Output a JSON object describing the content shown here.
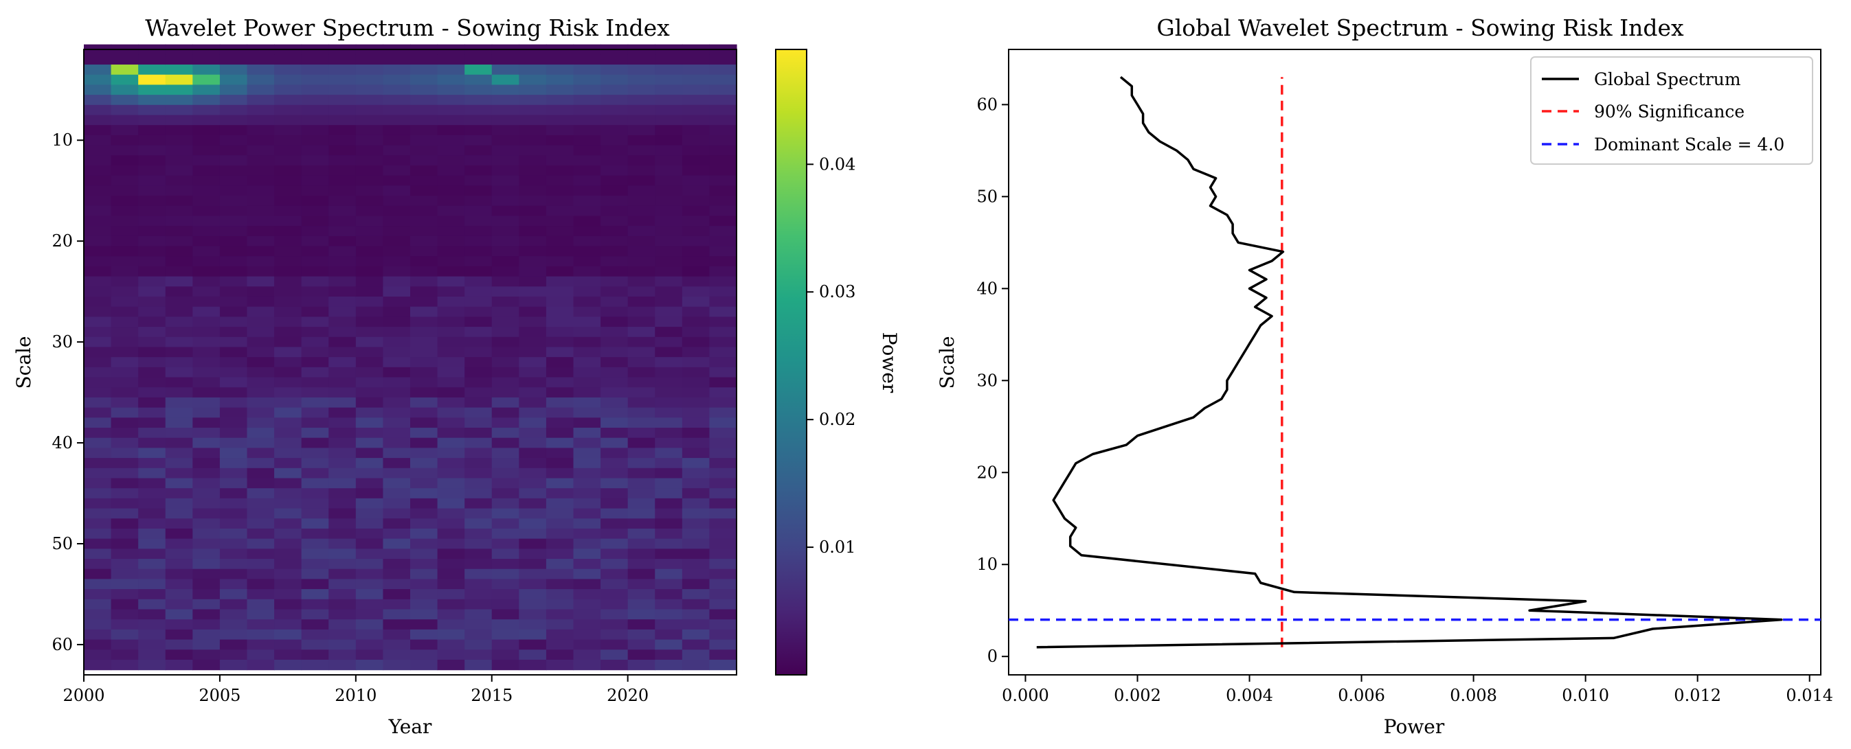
{
  "chart_data": [
    {
      "type": "heatmap",
      "title": "Wavelet Power Spectrum - Sowing Risk Index",
      "xlabel": "Year",
      "ylabel": "Scale",
      "xlim": [
        2000,
        2024
      ],
      "ylim": [
        63,
        1
      ],
      "x_ticks": [
        "2000",
        "2005",
        "2010",
        "2015",
        "2020"
      ],
      "y_ticks": [
        "10",
        "20",
        "30",
        "40",
        "50",
        "60"
      ],
      "years_start": 2000,
      "years_count": 24,
      "scales_count": 62,
      "colorbar": {
        "label": "Power",
        "colormap": "viridis",
        "min": 0.0,
        "max": 0.049,
        "ticks": [
          "0.01",
          "0.02",
          "0.03",
          "0.04"
        ]
      },
      "hotspots": [
        {
          "year": 2001,
          "scale": 3,
          "power": 0.042
        },
        {
          "year": 2002,
          "scale": 4,
          "power": 0.049
        },
        {
          "year": 2003,
          "scale": 4,
          "power": 0.047
        },
        {
          "year": 2004,
          "scale": 4,
          "power": 0.034
        },
        {
          "year": 2014,
          "scale": 3,
          "power": 0.028
        },
        {
          "year": 2015,
          "scale": 4,
          "power": 0.024
        }
      ]
    },
    {
      "type": "line",
      "title": "Global Wavelet Spectrum - Sowing Risk Index",
      "xlabel": "Power",
      "ylabel": "Scale",
      "xlim": [
        -0.0003,
        0.0142
      ],
      "ylim": [
        -2,
        66
      ],
      "x_ticks": [
        "0.000",
        "0.002",
        "0.004",
        "0.006",
        "0.008",
        "0.010",
        "0.012",
        "0.014"
      ],
      "y_ticks": [
        "0",
        "10",
        "20",
        "30",
        "40",
        "50",
        "60"
      ],
      "legend_position": "top-right",
      "legend": [
        "Global Spectrum",
        "90% Significance",
        "Dominant Scale = 4.0"
      ],
      "colors": {
        "spectrum": "#000000",
        "significance": "#ff1a1a",
        "dominant": "#1a1aff"
      },
      "series": [
        {
          "name": "Global Spectrum",
          "points": [
            [
              0.0002,
              1
            ],
            [
              0.0105,
              2
            ],
            [
              0.0112,
              3
            ],
            [
              0.0135,
              4
            ],
            [
              0.009,
              5
            ],
            [
              0.01,
              6
            ],
            [
              0.0048,
              7
            ],
            [
              0.0042,
              8
            ],
            [
              0.0041,
              9
            ],
            [
              0.001,
              11
            ],
            [
              0.0008,
              12
            ],
            [
              0.0008,
              13
            ],
            [
              0.0009,
              14
            ],
            [
              0.0007,
              15
            ],
            [
              0.0006,
              16
            ],
            [
              0.0005,
              17
            ],
            [
              0.0006,
              18
            ],
            [
              0.0007,
              19
            ],
            [
              0.0008,
              20
            ],
            [
              0.0009,
              21
            ],
            [
              0.0012,
              22
            ],
            [
              0.0018,
              23
            ],
            [
              0.002,
              24
            ],
            [
              0.0025,
              25
            ],
            [
              0.003,
              26
            ],
            [
              0.0032,
              27
            ],
            [
              0.0035,
              28
            ],
            [
              0.0036,
              29
            ],
            [
              0.0036,
              30
            ],
            [
              0.0037,
              31
            ],
            [
              0.0038,
              32
            ],
            [
              0.0039,
              33
            ],
            [
              0.004,
              34
            ],
            [
              0.0041,
              35
            ],
            [
              0.0042,
              36
            ],
            [
              0.0044,
              37
            ],
            [
              0.0041,
              38
            ],
            [
              0.0043,
              39
            ],
            [
              0.004,
              40
            ],
            [
              0.0043,
              41
            ],
            [
              0.004,
              42
            ],
            [
              0.0044,
              43
            ],
            [
              0.0046,
              44
            ],
            [
              0.0038,
              45
            ],
            [
              0.0037,
              46
            ],
            [
              0.0037,
              47
            ],
            [
              0.0036,
              48
            ],
            [
              0.0033,
              49
            ],
            [
              0.0034,
              50
            ],
            [
              0.0033,
              51
            ],
            [
              0.0034,
              52
            ],
            [
              0.003,
              53
            ],
            [
              0.0029,
              54
            ],
            [
              0.0027,
              55
            ],
            [
              0.0024,
              56
            ],
            [
              0.0022,
              57
            ],
            [
              0.0021,
              58
            ],
            [
              0.0021,
              59
            ],
            [
              0.002,
              60
            ],
            [
              0.0019,
              61
            ],
            [
              0.0019,
              62
            ],
            [
              0.0017,
              63
            ]
          ]
        },
        {
          "name": "90% Significance",
          "x": 0.00458,
          "y_range": [
            1,
            63
          ]
        },
        {
          "name": "Dominant Scale = 4.0",
          "y": 4.0
        }
      ]
    }
  ]
}
